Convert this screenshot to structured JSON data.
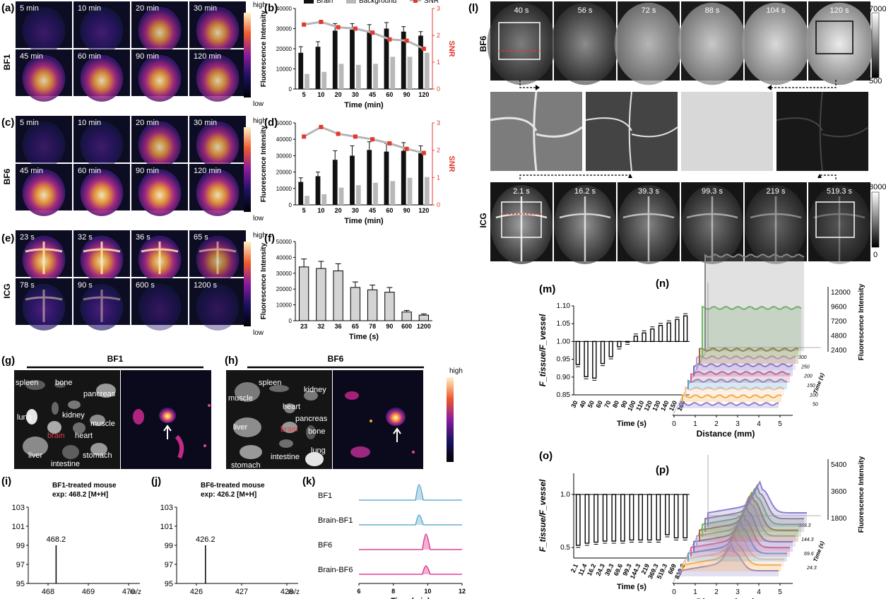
{
  "panels": {
    "a": {
      "label": "(a)",
      "row_label": "BF1",
      "times": [
        "5 min",
        "10 min",
        "20 min",
        "30 min",
        "45 min",
        "60 min",
        "90 min",
        "120 min"
      ],
      "intensity": [
        0.25,
        0.35,
        0.7,
        0.72,
        0.78,
        0.8,
        0.82,
        0.75
      ],
      "cb_high": "high",
      "cb_low": "low"
    },
    "b": {
      "label": "(b)"
    },
    "c": {
      "label": "(c)",
      "row_label": "BF6",
      "times": [
        "5 min",
        "10 min",
        "20 min",
        "30 min",
        "45 min",
        "60 min",
        "90 min",
        "120 min"
      ],
      "intensity": [
        0.2,
        0.28,
        0.72,
        0.74,
        0.88,
        0.9,
        0.9,
        0.86
      ],
      "cb_high": "high",
      "cb_low": "low"
    },
    "d": {
      "label": "(d)"
    },
    "e": {
      "label": "(e)",
      "row_label": "ICG",
      "times": [
        "23 s",
        "32 s",
        "36 s",
        "65 s",
        "78 s",
        "90 s",
        "600 s",
        "1200 s"
      ],
      "intensity": [
        0.85,
        0.85,
        0.82,
        0.55,
        0.5,
        0.45,
        0.12,
        0.08
      ],
      "cb_high": "high",
      "cb_low": "low"
    },
    "f": {
      "label": "(f)"
    },
    "g": {
      "label": "(g)",
      "title": "BF1",
      "organs": [
        "spleen",
        "bone",
        "pancreas",
        "lung",
        "kidney",
        "muscle",
        "brain",
        "heart",
        "liver",
        "stomach",
        "intestine"
      ]
    },
    "h": {
      "label": "(h)",
      "title": "BF6",
      "organs": [
        "muscle",
        "spleen",
        "kidney",
        "heart",
        "pancreas",
        "liver",
        "brain",
        "bone",
        "lung",
        "stomach",
        "intestine"
      ],
      "cb_high": "high"
    },
    "i": {
      "label": "(i)",
      "title1": "BF1-treated mouse",
      "title2": "exp: 468.2 [M+H]",
      "peak": "468.2",
      "yticks": [
        "103",
        "101",
        "99",
        "97",
        "95"
      ],
      "xticks": [
        "468",
        "469",
        "470"
      ],
      "xunit": "m/z"
    },
    "j": {
      "label": "(j)",
      "title1": "BF6-treated mouse",
      "title2": "exp: 426.2 [M+H]",
      "peak": "426.2",
      "yticks": [
        "103",
        "101",
        "99",
        "97",
        "95"
      ],
      "xticks": [
        "426",
        "427",
        "428"
      ],
      "xunit": "m/z"
    },
    "k": {
      "label": "(k)",
      "traces": [
        "BF1",
        "Brain-BF1",
        "BF6",
        "Brain-BF6"
      ],
      "xticks": [
        "6",
        "8",
        "10",
        "12"
      ],
      "xlabel": "Time (min)",
      "colors": [
        "#4a9fc5",
        "#4a9fc5",
        "#e0197d",
        "#e0197d"
      ]
    },
    "l": {
      "label": "(l)",
      "bf6_label": "BF6",
      "bf6_times": [
        "40 s",
        "56 s",
        "72 s",
        "88 s",
        "104 s",
        "120 s"
      ],
      "bf6_cb_max": "7000",
      "bf6_cb_min": "500",
      "icg_label": "ICG",
      "icg_times": [
        "2.1 s",
        "16.2 s",
        "39.3 s",
        "99.3 s",
        "219 s",
        "519.3 s"
      ],
      "icg_cb_max": "8000",
      "icg_cb_min": "0"
    },
    "m": {
      "label": "(m)",
      "xlabel": "Time (s)"
    },
    "n": {
      "label": "(n)",
      "xlabel": "Distance (mm)",
      "zlabel": "Fluorescence Intensity",
      "ylabel": "Time (s)",
      "zticks": [
        "12000",
        "9600",
        "7200",
        "4800",
        "2400"
      ],
      "xticks": [
        "0",
        "1",
        "2",
        "3",
        "4",
        "5"
      ],
      "yticks": [
        "300",
        "250",
        "200",
        "150",
        "100",
        "50"
      ]
    },
    "o": {
      "label": "(o)",
      "xlabel": "Time (s)"
    },
    "p": {
      "label": "(p)",
      "xlabel": "Distance (mm)",
      "zlabel": "Fluorescence Intensity",
      "ylabel": "Time (s)",
      "zticks": [
        "5400",
        "3600",
        "1800"
      ],
      "xticks": [
        "0",
        "1",
        "2",
        "3",
        "4",
        "5"
      ],
      "yticks": [
        "369.3",
        "144.3",
        "69.6",
        "24.3"
      ]
    }
  },
  "chart_data": [
    {
      "id": "b",
      "type": "bar",
      "categories": [
        "5",
        "10",
        "20",
        "30",
        "45",
        "60",
        "90",
        "120"
      ],
      "series": [
        {
          "name": "Brain",
          "values": [
            18000,
            21000,
            29000,
            29500,
            29000,
            30000,
            28500,
            26500
          ],
          "errors": [
            3000,
            2500,
            3500,
            3000,
            3000,
            3000,
            2500,
            2000
          ]
        },
        {
          "name": "Background",
          "values": [
            7500,
            8500,
            12500,
            12000,
            12500,
            16000,
            16000,
            18000
          ]
        }
      ],
      "line": {
        "name": "SNR",
        "values": [
          2.4,
          2.5,
          2.3,
          2.25,
          2.1,
          1.85,
          1.8,
          1.5
        ]
      },
      "xlabel": "Time (min)",
      "ylabel": "Fluorescence Intensity",
      "y2label": "SNR",
      "ylim": [
        0,
        40000
      ],
      "y2lim": [
        0,
        3
      ],
      "yticks": [
        "0",
        "10000",
        "20000",
        "30000",
        "40000"
      ],
      "y2ticks": [
        "0",
        "1",
        "2",
        "3"
      ]
    },
    {
      "id": "d",
      "type": "bar",
      "categories": [
        "5",
        "10",
        "20",
        "30",
        "45",
        "60",
        "90",
        "120"
      ],
      "series": [
        {
          "name": "Brain",
          "values": [
            14000,
            17500,
            27500,
            30000,
            33500,
            32500,
            33000,
            31500
          ],
          "errors": [
            2500,
            2500,
            5500,
            6000,
            5000,
            5000,
            5000,
            4500
          ]
        },
        {
          "name": "Background",
          "values": [
            5500,
            6500,
            10500,
            12000,
            13500,
            14500,
            16500,
            17000
          ]
        }
      ],
      "line": {
        "name": "SNR",
        "values": [
          2.5,
          2.85,
          2.6,
          2.5,
          2.4,
          2.25,
          2.05,
          1.9
        ]
      },
      "xlabel": "Time (min)",
      "ylabel": "Fluorescence Intensity",
      "y2label": "SNR",
      "ylim": [
        0,
        50000
      ],
      "y2lim": [
        0,
        3
      ],
      "yticks": [
        "0",
        "10000",
        "20000",
        "30000",
        "40000",
        "50000"
      ],
      "y2ticks": [
        "0",
        "1",
        "2",
        "3"
      ]
    },
    {
      "id": "f",
      "type": "bar",
      "categories": [
        "23",
        "32",
        "36",
        "65",
        "78",
        "90",
        "600",
        "1200"
      ],
      "values": [
        34000,
        33000,
        31500,
        21000,
        19500,
        18000,
        5500,
        3500
      ],
      "errors": [
        5000,
        4500,
        4500,
        3500,
        3000,
        3000,
        1000,
        800
      ],
      "xlabel": "Time (s)",
      "ylabel": "Fluorescence Intensity",
      "ylim": [
        0,
        50000
      ],
      "yticks": [
        "0",
        "10000",
        "20000",
        "30000",
        "40000",
        "50000"
      ]
    },
    {
      "id": "m",
      "type": "bar",
      "categories": [
        "30",
        "40",
        "50",
        "60",
        "70",
        "80",
        "90",
        "100",
        "110",
        "120",
        "130",
        "140",
        "150",
        "160"
      ],
      "values": [
        0.935,
        0.901,
        0.897,
        0.938,
        0.957,
        0.985,
        0.998,
        1.015,
        1.024,
        1.035,
        1.045,
        1.052,
        1.062,
        1.072
      ],
      "baseline": 1.0,
      "xlabel": "Time (s)",
      "ylabel": "F_tissue/F_vessel",
      "ylim": [
        0.85,
        1.1
      ],
      "yticks": [
        "0.85",
        "0.90",
        "0.95",
        "1.00",
        "1.05",
        "1.10"
      ]
    },
    {
      "id": "o",
      "type": "bar",
      "categories": [
        "2.1",
        "11.4",
        "16.2",
        "24.3",
        "39.3",
        "69.6",
        "99.3",
        "144.3",
        "219",
        "369.3",
        "519.3",
        "669",
        "819.3"
      ],
      "values": [
        0.52,
        0.54,
        0.55,
        0.56,
        0.56,
        0.56,
        0.57,
        0.57,
        0.57,
        0.57,
        0.62,
        0.59,
        0.59
      ],
      "baseline": 1.0,
      "xlabel": "Time (s)",
      "ylabel": "F_tissue/F_vessel",
      "ylim": [
        0.4,
        1.2
      ],
      "yticks": [
        "0.5",
        "1.0"
      ]
    }
  ]
}
